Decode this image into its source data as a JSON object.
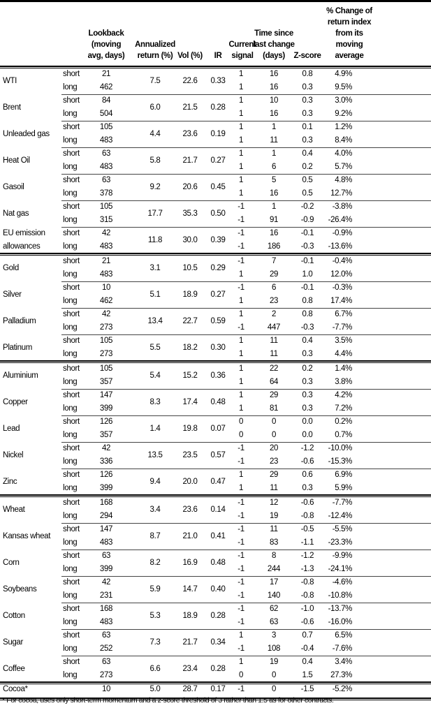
{
  "headers": {
    "lookback": [
      "Lookback",
      "(moving",
      "avg, days)"
    ],
    "annualized": [
      "Annualized",
      "return (%)"
    ],
    "vol": [
      "Vol (%)"
    ],
    "ir": [
      "IR"
    ],
    "signal": [
      "Current",
      "signal"
    ],
    "time": [
      "Time since",
      "last change",
      "(days)"
    ],
    "zscore": [
      "Z-score"
    ],
    "pct": [
      "% Change of",
      "return index",
      "from its",
      "moving",
      "average"
    ]
  },
  "groups": [
    [
      {
        "name": [
          "WTI"
        ],
        "ann": "7.5",
        "vol": "22.6",
        "ir": "0.33",
        "rows": [
          [
            "short",
            "21",
            "1",
            "16",
            "0.8",
            "4.9%"
          ],
          [
            "long",
            "462",
            "1",
            "16",
            "0.3",
            "9.5%"
          ]
        ]
      },
      {
        "name": [
          "Brent"
        ],
        "ann": "6.0",
        "vol": "21.5",
        "ir": "0.28",
        "rows": [
          [
            "short",
            "84",
            "1",
            "10",
            "0.3",
            "3.0%"
          ],
          [
            "long",
            "504",
            "1",
            "16",
            "0.3",
            "9.2%"
          ]
        ]
      },
      {
        "name": [
          "Unleaded gas"
        ],
        "ann": "4.4",
        "vol": "23.6",
        "ir": "0.19",
        "rows": [
          [
            "short",
            "105",
            "1",
            "1",
            "0.1",
            "1.2%"
          ],
          [
            "long",
            "483",
            "1",
            "11",
            "0.3",
            "8.4%"
          ]
        ]
      },
      {
        "name": [
          "Heat Oil"
        ],
        "ann": "5.8",
        "vol": "21.7",
        "ir": "0.27",
        "rows": [
          [
            "short",
            "63",
            "1",
            "1",
            "0.4",
            "4.0%"
          ],
          [
            "long",
            "483",
            "1",
            "6",
            "0.2",
            "5.7%"
          ]
        ]
      },
      {
        "name": [
          "Gasoil"
        ],
        "ann": "9.2",
        "vol": "20.6",
        "ir": "0.45",
        "rows": [
          [
            "short",
            "63",
            "1",
            "5",
            "0.5",
            "4.8%"
          ],
          [
            "long",
            "378",
            "1",
            "16",
            "0.5",
            "12.7%"
          ]
        ]
      },
      {
        "name": [
          "Nat gas"
        ],
        "ann": "17.7",
        "vol": "35.3",
        "ir": "0.50",
        "rows": [
          [
            "short",
            "105",
            "-1",
            "1",
            "-0.2",
            "-3.8%"
          ],
          [
            "long",
            "315",
            "-1",
            "91",
            "-0.9",
            "-26.4%"
          ]
        ]
      },
      {
        "name": [
          "EU emission",
          "allowances"
        ],
        "ann": "11.8",
        "vol": "30.0",
        "ir": "0.39",
        "rows": [
          [
            "short",
            "42",
            "-1",
            "16",
            "-0.1",
            "-0.9%"
          ],
          [
            "long",
            "483",
            "-1",
            "186",
            "-0.3",
            "-13.6%"
          ]
        ]
      }
    ],
    [
      {
        "name": [
          "Gold"
        ],
        "ann": "3.1",
        "vol": "10.5",
        "ir": "0.29",
        "rows": [
          [
            "short",
            "21",
            "-1",
            "7",
            "-0.1",
            "-0.4%"
          ],
          [
            "long",
            "483",
            "1",
            "29",
            "1.0",
            "12.0%"
          ]
        ]
      },
      {
        "name": [
          "Silver"
        ],
        "ann": "5.1",
        "vol": "18.9",
        "ir": "0.27",
        "rows": [
          [
            "short",
            "10",
            "-1",
            "6",
            "-0.1",
            "-0.3%"
          ],
          [
            "long",
            "462",
            "1",
            "23",
            "0.8",
            "17.4%"
          ]
        ]
      },
      {
        "name": [
          "Palladium"
        ],
        "ann": "13.4",
        "vol": "22.7",
        "ir": "0.59",
        "rows": [
          [
            "short",
            "42",
            "1",
            "2",
            "0.8",
            "6.7%"
          ],
          [
            "long",
            "273",
            "-1",
            "447",
            "-0.3",
            "-7.7%"
          ]
        ]
      },
      {
        "name": [
          "Platinum"
        ],
        "ann": "5.5",
        "vol": "18.2",
        "ir": "0.30",
        "rows": [
          [
            "short",
            "105",
            "1",
            "11",
            "0.4",
            "3.5%"
          ],
          [
            "long",
            "273",
            "1",
            "11",
            "0.3",
            "4.4%"
          ]
        ]
      }
    ],
    [
      {
        "name": [
          "Aluminium"
        ],
        "ann": "5.4",
        "vol": "15.2",
        "ir": "0.36",
        "rows": [
          [
            "short",
            "105",
            "1",
            "22",
            "0.2",
            "1.4%"
          ],
          [
            "long",
            "357",
            "1",
            "64",
            "0.3",
            "3.8%"
          ]
        ]
      },
      {
        "name": [
          "Copper"
        ],
        "ann": "8.3",
        "vol": "17.4",
        "ir": "0.48",
        "rows": [
          [
            "short",
            "147",
            "1",
            "29",
            "0.3",
            "4.2%"
          ],
          [
            "long",
            "399",
            "1",
            "81",
            "0.3",
            "7.2%"
          ]
        ]
      },
      {
        "name": [
          "Lead"
        ],
        "ann": "1.4",
        "vol": "19.8",
        "ir": "0.07",
        "rows": [
          [
            "short",
            "126",
            "0",
            "0",
            "0.0",
            "0.2%"
          ],
          [
            "long",
            "357",
            "0",
            "0",
            "0.0",
            "0.7%"
          ]
        ]
      },
      {
        "name": [
          "Nickel"
        ],
        "ann": "13.5",
        "vol": "23.5",
        "ir": "0.57",
        "rows": [
          [
            "short",
            "42",
            "-1",
            "20",
            "-1.2",
            "-10.0%"
          ],
          [
            "long",
            "336",
            "-1",
            "23",
            "-0.6",
            "-15.3%"
          ]
        ]
      },
      {
        "name": [
          "Zinc"
        ],
        "ann": "9.4",
        "vol": "20.0",
        "ir": "0.47",
        "rows": [
          [
            "short",
            "126",
            "1",
            "29",
            "0.6",
            "6.9%"
          ],
          [
            "long",
            "399",
            "1",
            "11",
            "0.3",
            "5.9%"
          ]
        ]
      }
    ],
    [
      {
        "name": [
          "Wheat"
        ],
        "ann": "3.4",
        "vol": "23.6",
        "ir": "0.14",
        "rows": [
          [
            "short",
            "168",
            "-1",
            "12",
            "-0.6",
            "-7.7%"
          ],
          [
            "long",
            "294",
            "-1",
            "19",
            "-0.8",
            "-12.4%"
          ]
        ]
      },
      {
        "name": [
          "Kansas wheat"
        ],
        "ann": "8.7",
        "vol": "21.0",
        "ir": "0.41",
        "rows": [
          [
            "short",
            "147",
            "-1",
            "11",
            "-0.5",
            "-5.5%"
          ],
          [
            "long",
            "483",
            "-1",
            "83",
            "-1.1",
            "-23.3%"
          ]
        ]
      },
      {
        "name": [
          "Corn"
        ],
        "ann": "8.2",
        "vol": "16.9",
        "ir": "0.48",
        "rows": [
          [
            "short",
            "63",
            "-1",
            "8",
            "-1.2",
            "-9.9%"
          ],
          [
            "long",
            "399",
            "-1",
            "244",
            "-1.3",
            "-24.1%"
          ]
        ]
      },
      {
        "name": [
          "Soybeans"
        ],
        "ann": "5.9",
        "vol": "14.7",
        "ir": "0.40",
        "rows": [
          [
            "short",
            "42",
            "-1",
            "17",
            "-0.8",
            "-4.6%"
          ],
          [
            "long",
            "231",
            "-1",
            "140",
            "-0.8",
            "-10.8%"
          ]
        ]
      },
      {
        "name": [
          "Cotton"
        ],
        "ann": "5.3",
        "vol": "18.9",
        "ir": "0.28",
        "rows": [
          [
            "short",
            "168",
            "-1",
            "62",
            "-1.0",
            "-13.7%"
          ],
          [
            "long",
            "483",
            "-1",
            "63",
            "-0.6",
            "-16.0%"
          ]
        ]
      },
      {
        "name": [
          "Sugar"
        ],
        "ann": "7.3",
        "vol": "21.7",
        "ir": "0.34",
        "rows": [
          [
            "short",
            "63",
            "1",
            "3",
            "0.7",
            "6.5%"
          ],
          [
            "long",
            "252",
            "-1",
            "108",
            "-0.4",
            "-7.6%"
          ]
        ]
      },
      {
        "name": [
          "Coffee"
        ],
        "ann": "6.6",
        "vol": "23.4",
        "ir": "0.28",
        "rows": [
          [
            "short",
            "63",
            "1",
            "19",
            "0.4",
            "3.4%"
          ],
          [
            "long",
            "273",
            "0",
            "0",
            "1.5",
            "27.3%"
          ]
        ]
      }
    ]
  ],
  "cocoa": {
    "name": "Cocoa*",
    "lookback": "10",
    "ann": "5.0",
    "vol": "28.7",
    "ir": "0.17",
    "signal": "-1",
    "time": "0",
    "z": "-1.5",
    "pct": "-5.2%"
  },
  "footnote": "* For cocoa, uses only short-term momentum and a z-score threshold of 3 rather than 1.5 as for other contracts."
}
